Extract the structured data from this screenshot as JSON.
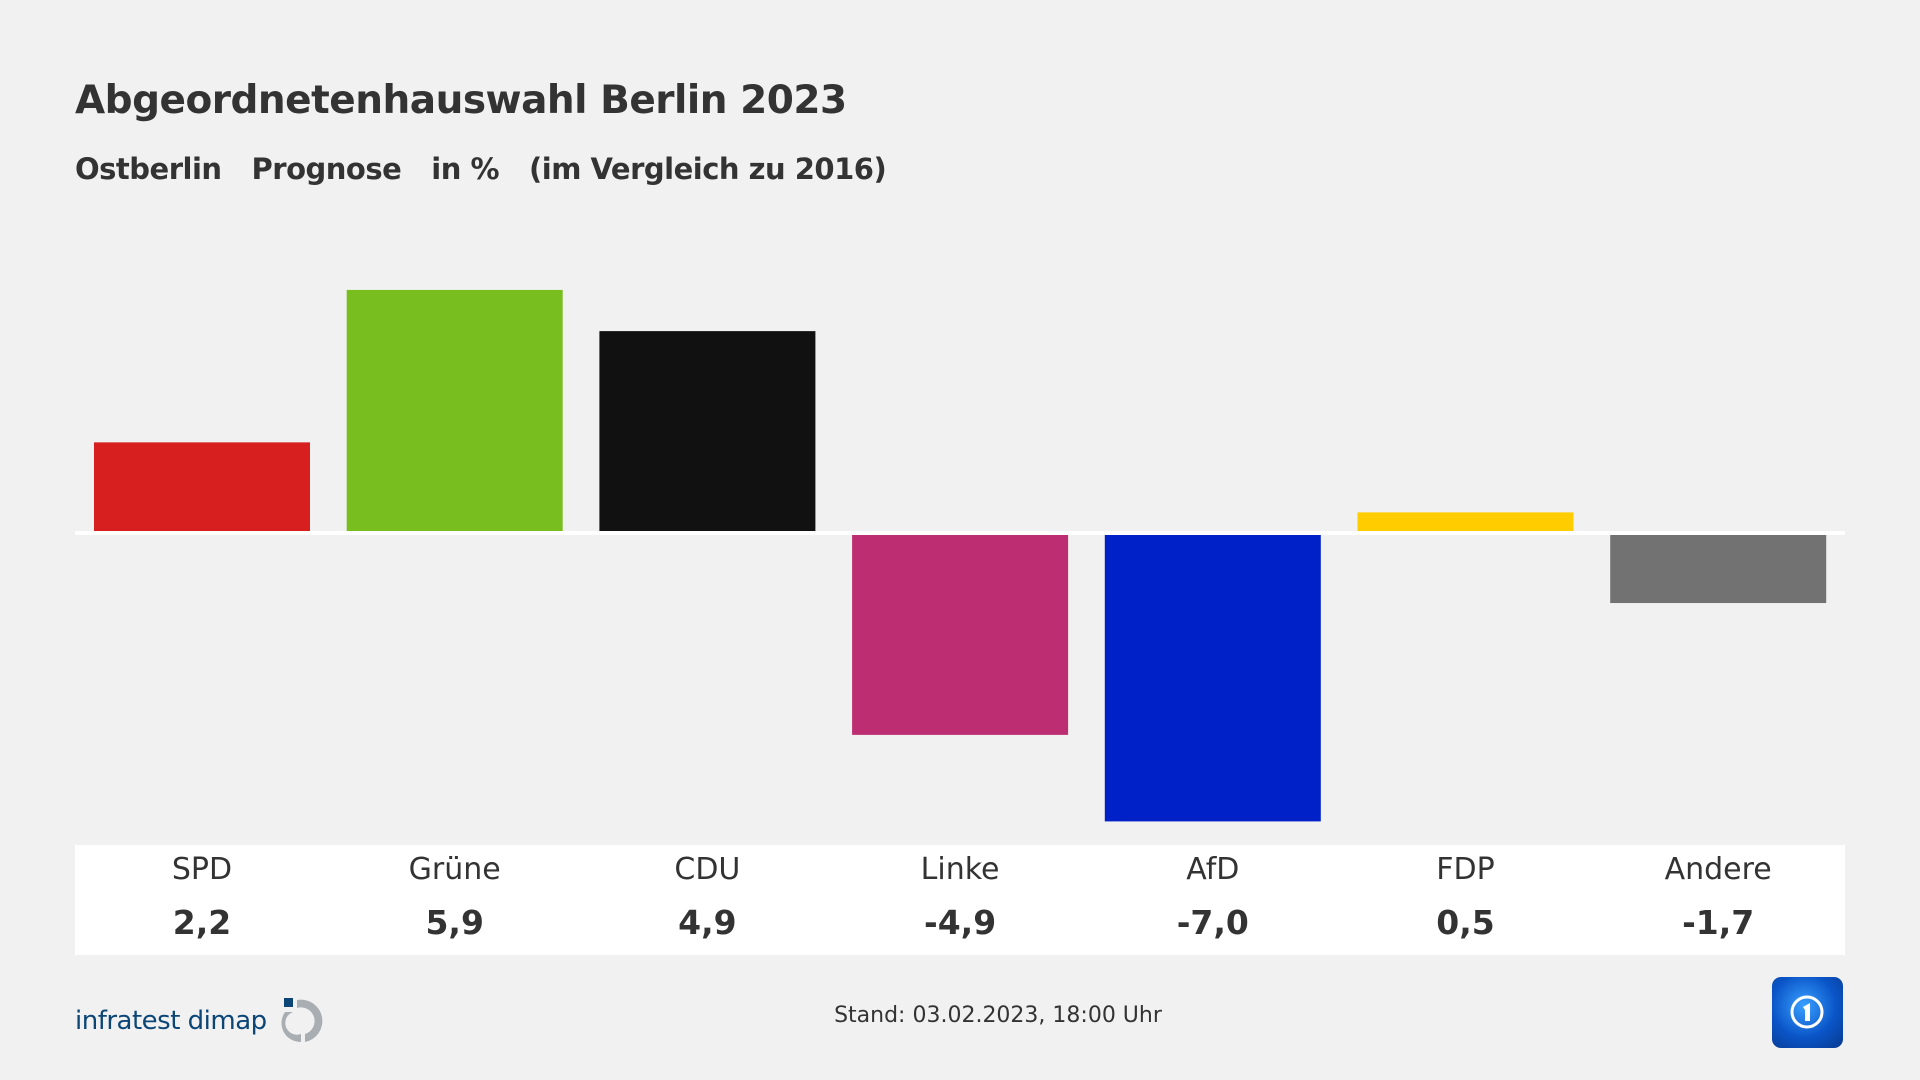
{
  "header": {
    "title": "Abgeordnetenhauswahl Berlin 2023",
    "subtitle": [
      "Ostberlin",
      "Prognose",
      "in %",
      "(im Vergleich zu 2016)"
    ]
  },
  "chart_data": {
    "type": "bar",
    "title": "Abgeordnetenhauswahl Berlin 2023",
    "subtitle": "Ostberlin Prognose in % (im Vergleich zu 2016)",
    "categories": [
      "SPD",
      "Grüne",
      "CDU",
      "Linke",
      "AfD",
      "FDP",
      "Andere"
    ],
    "values": [
      2.2,
      5.9,
      4.9,
      -4.9,
      -7.0,
      0.5,
      -1.7
    ],
    "value_labels": [
      "2,2",
      "5,9",
      "4,9",
      "-4,9",
      "-7,0",
      "0,5",
      "-1,7"
    ],
    "colors": [
      "#d71f1f",
      "#78be1e",
      "#111111",
      "#bc2d72",
      "#0020c8",
      "#ffcc00",
      "#727273"
    ],
    "grid": false
  },
  "footer": {
    "stand": "Stand:  03.02.2023, 18:00 Uhr",
    "logo_text": "infratest dimap",
    "broadcaster_icon": "tagesschau-app-icon"
  }
}
